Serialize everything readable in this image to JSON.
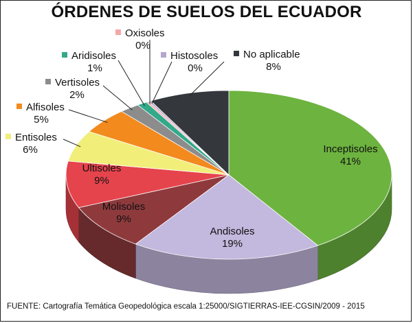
{
  "chart_data": {
    "type": "pie",
    "title": "ÓRDENES DE SUELOS DEL ECUADOR",
    "source": "FUENTE: Cartografía Temática Geopedológica escala 1:25000/SIGTIERRAS-IEE-CGSIN/2009 - 2015",
    "slices": [
      {
        "label": "Inceptisoles",
        "value": 41,
        "value_label": "41%",
        "color": "#6db33f"
      },
      {
        "label": "Andisoles",
        "value": 19,
        "value_label": "19%",
        "color": "#c3b8dd"
      },
      {
        "label": "Molisoles",
        "value": 9,
        "value_label": "9%",
        "color": "#8e3a3d"
      },
      {
        "label": "Ultisoles",
        "value": 9,
        "value_label": "9%",
        "color": "#e5444d"
      },
      {
        "label": "Entisoles",
        "value": 6,
        "value_label": "6%",
        "color": "#f1ee7a"
      },
      {
        "label": "Alfisoles",
        "value": 5,
        "value_label": "5%",
        "color": "#f28a1e"
      },
      {
        "label": "Vertisoles",
        "value": 2,
        "value_label": "2%",
        "color": "#8c8c8c"
      },
      {
        "label": "Aridisoles",
        "value": 1,
        "value_label": "1%",
        "color": "#33a98a"
      },
      {
        "label": "Oxisoles",
        "value": 0,
        "value_label": "0%",
        "color": "#f4a6a6"
      },
      {
        "label": "Histosoles",
        "value": 0,
        "value_label": "0%",
        "color": "#b3a6cf"
      },
      {
        "label": "No aplicable",
        "value": 8,
        "value_label": "8%",
        "color": "#34383d"
      }
    ]
  }
}
